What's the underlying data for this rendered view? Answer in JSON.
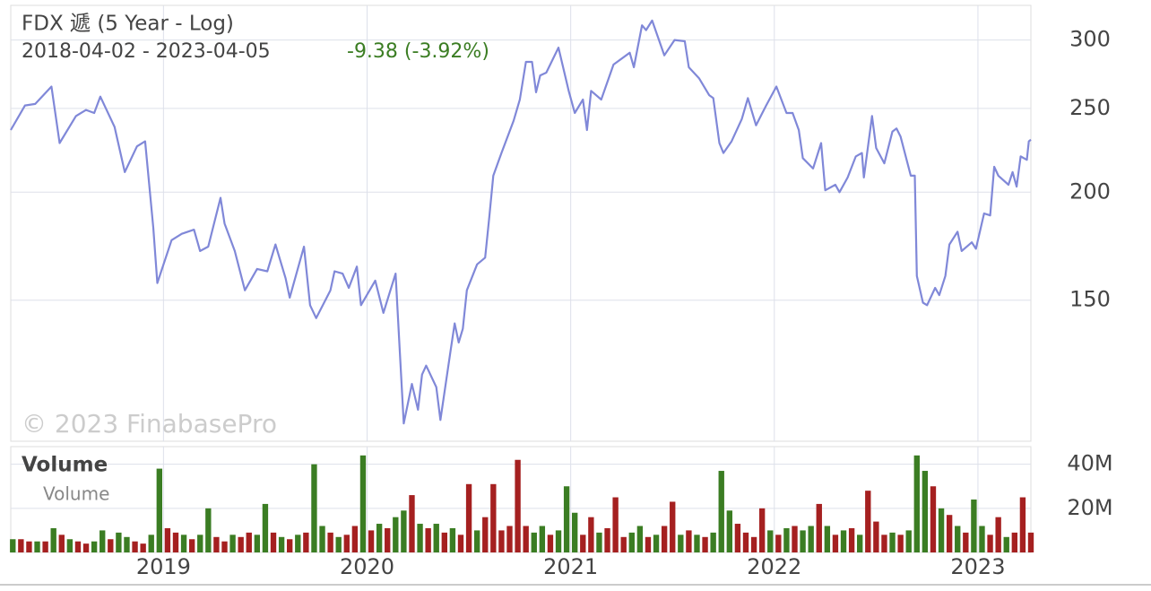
{
  "chart_data": [
    {
      "type": "line",
      "title": "FDX 遞 (5 Year - Log)",
      "subtitle": "2018-04-02 - 2023-04-05",
      "annotation": "-9.38 (-3.92%)",
      "annotation_color": "#3b7d23",
      "watermark": "© 2023 FinabasePro",
      "log_scale": true,
      "grid": true,
      "xlim": [
        2018.25,
        2023.26
      ],
      "xticks": [
        2019,
        2020,
        2021,
        2022,
        2023
      ],
      "ylim": [
        103,
        329
      ],
      "yticks": [
        150,
        200,
        250,
        300
      ],
      "x": [
        2018.25,
        2018.32,
        2018.37,
        2018.45,
        2018.49,
        2018.57,
        2018.62,
        2018.66,
        2018.69,
        2018.76,
        2018.81,
        2018.87,
        2018.91,
        2018.95,
        2018.97,
        2019.04,
        2019.09,
        2019.15,
        2019.18,
        2019.22,
        2019.28,
        2019.3,
        2019.35,
        2019.4,
        2019.46,
        2019.51,
        2019.55,
        2019.6,
        2019.62,
        2019.69,
        2019.72,
        2019.75,
        2019.82,
        2019.84,
        2019.88,
        2019.91,
        2019.95,
        2019.97,
        2020.04,
        2020.08,
        2020.14,
        2020.16,
        2020.18,
        2020.22,
        2020.25,
        2020.27,
        2020.29,
        2020.34,
        2020.36,
        2020.41,
        2020.43,
        2020.45,
        2020.47,
        2020.49,
        2020.54,
        2020.58,
        2020.6,
        2020.62,
        2020.66,
        2020.72,
        2020.75,
        2020.78,
        2020.81,
        2020.83,
        2020.85,
        2020.88,
        2020.94,
        2020.99,
        2021.02,
        2021.06,
        2021.08,
        2021.1,
        2021.15,
        2021.21,
        2021.29,
        2021.31,
        2021.35,
        2021.37,
        2021.4,
        2021.46,
        2021.51,
        2021.56,
        2021.58,
        2021.63,
        2021.68,
        2021.7,
        2021.73,
        2021.75,
        2021.79,
        2021.84,
        2021.87,
        2021.91,
        2021.96,
        2022.01,
        2022.06,
        2022.09,
        2022.12,
        2022.14,
        2022.19,
        2022.23,
        2022.25,
        2022.3,
        2022.32,
        2022.36,
        2022.4,
        2022.43,
        2022.44,
        2022.48,
        2022.5,
        2022.54,
        2022.58,
        2022.6,
        2022.62,
        2022.67,
        2022.69,
        2022.7,
        2022.73,
        2022.75,
        2022.79,
        2022.81,
        2022.84,
        2022.86,
        2022.9,
        2022.92,
        2022.97,
        2022.99,
        2023.03,
        2023.06,
        2023.08,
        2023.1,
        2023.15,
        2023.17,
        2023.19,
        2023.21,
        2023.24,
        2023.25,
        2023.26
      ],
      "series": [
        {
          "color": "#8088d8",
          "values": [
            236,
            252,
            253,
            265,
            228,
            245,
            249,
            247,
            258,
            238,
            211,
            226,
            229,
            182,
            157,
            176,
            179,
            181,
            171,
            173,
            197,
            184,
            171,
            154,
            163,
            162,
            174,
            159,
            151,
            173,
            148,
            143,
            154,
            162,
            161,
            155,
            164,
            148,
            158,
            145,
            161,
            132,
            108,
            120,
            112,
            123,
            126,
            119,
            109,
            131,
            141,
            134,
            139,
            154,
            165,
            168,
            187,
            209,
            222,
            242,
            256,
            283,
            283,
            261,
            273,
            275,
            294,
            262,
            247,
            256,
            236,
            262,
            256,
            281,
            290,
            279,
            312,
            308,
            316,
            288,
            300,
            299,
            279,
            271,
            259,
            257,
            228,
            222,
            229,
            243,
            257,
            239,
            252,
            265,
            247,
            247,
            236,
            219,
            213,
            228,
            201,
            204,
            200,
            208,
            220,
            222,
            208,
            245,
            225,
            216,
            235,
            237,
            232,
            209,
            209,
            160,
            149,
            148,
            155,
            152,
            160,
            174,
            180,
            171,
            175,
            172,
            189,
            188,
            214,
            209,
            204,
            211,
            203,
            220,
            218,
            229,
            230
          ]
        }
      ]
    },
    {
      "type": "bar",
      "title": "Volume",
      "grid": true,
      "xlim": [
        2018.25,
        2023.26
      ],
      "xticks": [
        2019,
        2020,
        2021,
        2022,
        2023
      ],
      "ylim": [
        0,
        48000000
      ],
      "yticks": [
        {
          "value": 20000000,
          "label": "20M"
        },
        {
          "value": 40000000,
          "label": "40M"
        }
      ],
      "x": [
        2018.26,
        2018.3,
        2018.34,
        2018.38,
        2018.42,
        2018.46,
        2018.5,
        2018.54,
        2018.58,
        2018.62,
        2018.66,
        2018.7,
        2018.74,
        2018.78,
        2018.82,
        2018.86,
        2018.9,
        2018.94,
        2018.98,
        2019.02,
        2019.06,
        2019.1,
        2019.14,
        2019.18,
        2019.22,
        2019.26,
        2019.3,
        2019.34,
        2019.38,
        2019.42,
        2019.46,
        2019.5,
        2019.54,
        2019.58,
        2019.62,
        2019.66,
        2019.7,
        2019.74,
        2019.78,
        2019.82,
        2019.86,
        2019.9,
        2019.94,
        2019.98,
        2020.02,
        2020.06,
        2020.1,
        2020.14,
        2020.18,
        2020.22,
        2020.26,
        2020.3,
        2020.34,
        2020.38,
        2020.42,
        2020.46,
        2020.5,
        2020.54,
        2020.58,
        2020.62,
        2020.66,
        2020.7,
        2020.74,
        2020.78,
        2020.82,
        2020.86,
        2020.9,
        2020.94,
        2020.98,
        2021.02,
        2021.06,
        2021.1,
        2021.14,
        2021.18,
        2021.22,
        2021.26,
        2021.3,
        2021.34,
        2021.38,
        2021.42,
        2021.46,
        2021.5,
        2021.54,
        2021.58,
        2021.62,
        2021.66,
        2021.7,
        2021.74,
        2021.78,
        2021.82,
        2021.86,
        2021.9,
        2021.94,
        2021.98,
        2022.02,
        2022.06,
        2022.1,
        2022.14,
        2022.18,
        2022.22,
        2022.26,
        2022.3,
        2022.34,
        2022.38,
        2022.42,
        2022.46,
        2022.5,
        2022.54,
        2022.58,
        2022.62,
        2022.66,
        2022.7,
        2022.74,
        2022.78,
        2022.82,
        2022.86,
        2022.9,
        2022.94,
        2022.98,
        2023.02,
        2023.06,
        2023.1,
        2023.14,
        2023.18,
        2023.22,
        2023.26
      ],
      "series": [
        {
          "name": "Volume",
          "values": [
            6000000,
            6000000,
            5000000,
            5000000,
            5000000,
            11000000,
            8000000,
            6000000,
            5000000,
            4000000,
            5000000,
            10000000,
            6000000,
            9000000,
            7000000,
            5000000,
            4000000,
            8000000,
            38000000,
            11000000,
            9000000,
            8000000,
            6000000,
            8000000,
            20000000,
            7000000,
            5000000,
            8000000,
            7000000,
            9000000,
            8000000,
            22000000,
            9000000,
            7000000,
            6000000,
            8000000,
            9000000,
            40000000,
            12000000,
            9000000,
            7000000,
            8000000,
            12000000,
            44000000,
            10000000,
            13000000,
            11000000,
            16000000,
            19000000,
            26000000,
            13000000,
            11000000,
            13000000,
            9000000,
            11000000,
            8000000,
            31000000,
            10000000,
            16000000,
            31000000,
            10000000,
            12000000,
            42000000,
            12000000,
            9000000,
            12000000,
            8000000,
            10000000,
            30000000,
            18000000,
            8000000,
            16000000,
            9000000,
            11000000,
            25000000,
            7000000,
            9000000,
            12000000,
            7000000,
            8000000,
            12000000,
            23000000,
            8000000,
            10000000,
            8000000,
            7000000,
            9000000,
            37000000,
            19000000,
            13000000,
            9000000,
            7000000,
            20000000,
            10000000,
            8000000,
            11000000,
            12000000,
            10000000,
            12000000,
            22000000,
            12000000,
            8000000,
            10000000,
            11000000,
            8000000,
            28000000,
            14000000,
            8000000,
            9000000,
            8000000,
            10000000,
            44000000,
            37000000,
            30000000,
            20000000,
            17000000,
            12000000,
            9000000,
            24000000,
            12000000,
            8000000,
            16000000,
            7000000,
            9000000,
            25000000,
            9000000
          ],
          "colors": [
            "#3b7d23",
            "#a52020",
            "#a52020",
            "#3b7d23",
            "#a52020",
            "#3b7d23",
            "#a52020",
            "#3b7d23",
            "#a52020",
            "#a52020",
            "#3b7d23",
            "#3b7d23",
            "#a52020",
            "#3b7d23",
            "#3b7d23",
            "#a52020",
            "#a52020",
            "#3b7d23",
            "#3b7d23",
            "#a52020",
            "#a52020",
            "#3b7d23",
            "#a52020",
            "#3b7d23",
            "#3b7d23",
            "#a52020",
            "#a52020",
            "#3b7d23",
            "#a52020",
            "#a52020",
            "#3b7d23",
            "#3b7d23",
            "#a52020",
            "#3b7d23",
            "#a52020",
            "#3b7d23",
            "#a52020",
            "#3b7d23",
            "#3b7d23",
            "#a52020",
            "#3b7d23",
            "#a52020",
            "#a52020",
            "#3b7d23",
            "#a52020",
            "#3b7d23",
            "#a52020",
            "#3b7d23",
            "#3b7d23",
            "#a52020",
            "#3b7d23",
            "#a52020",
            "#3b7d23",
            "#a52020",
            "#3b7d23",
            "#a52020",
            "#a52020",
            "#3b7d23",
            "#a52020",
            "#a52020",
            "#a52020",
            "#a52020",
            "#a52020",
            "#a52020",
            "#3b7d23",
            "#3b7d23",
            "#a52020",
            "#3b7d23",
            "#3b7d23",
            "#3b7d23",
            "#a52020",
            "#a52020",
            "#3b7d23",
            "#a52020",
            "#a52020",
            "#a52020",
            "#3b7d23",
            "#3b7d23",
            "#a52020",
            "#3b7d23",
            "#a52020",
            "#a52020",
            "#3b7d23",
            "#a52020",
            "#3b7d23",
            "#a52020",
            "#3b7d23",
            "#3b7d23",
            "#3b7d23",
            "#a52020",
            "#a52020",
            "#a52020",
            "#a52020",
            "#3b7d23",
            "#a52020",
            "#3b7d23",
            "#a52020",
            "#3b7d23",
            "#3b7d23",
            "#a52020",
            "#3b7d23",
            "#a52020",
            "#3b7d23",
            "#a52020",
            "#3b7d23",
            "#a52020",
            "#a52020",
            "#a52020",
            "#3b7d23",
            "#a52020",
            "#3b7d23",
            "#3b7d23",
            "#3b7d23",
            "#a52020",
            "#3b7d23",
            "#a52020",
            "#3b7d23",
            "#a52020",
            "#3b7d23",
            "#3b7d23",
            "#a52020",
            "#a52020",
            "#3b7d23",
            "#a52020",
            "#a52020",
            "#a52020"
          ]
        }
      ]
    }
  ]
}
